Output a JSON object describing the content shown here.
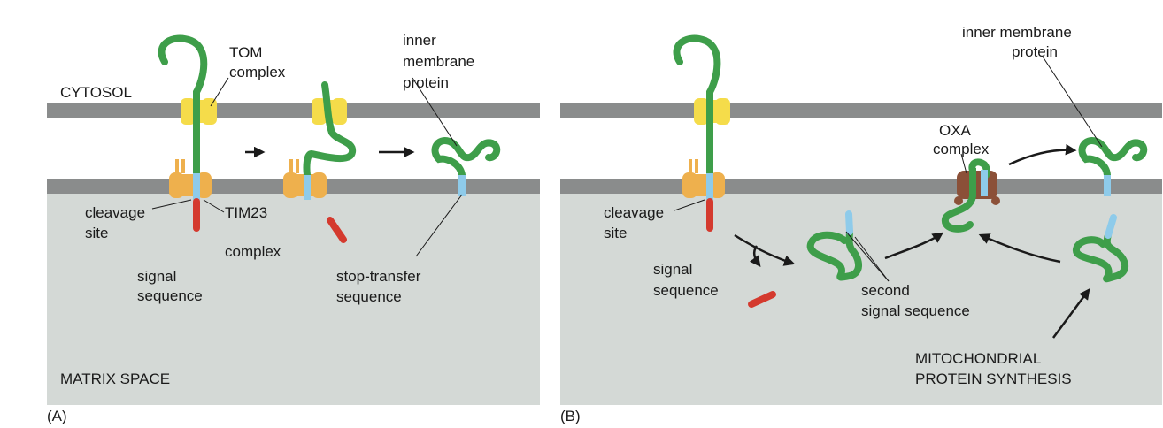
{
  "colors": {
    "membrane": "#8a8c8c",
    "matrix": "#d4d9d6",
    "protein": "#3e9e4a",
    "tom": "#f5dc4a",
    "tim23": "#eeb04d",
    "oxa": "#8b5038",
    "signal": "#d43a2e",
    "stop_transfer": "#8ecbea"
  },
  "panel_a": {
    "letter": "(A)",
    "compartments": {
      "cytosol": "CYTOSOL",
      "matrix": "MATRIX SPACE"
    },
    "labels": {
      "tom_1": "TOM",
      "tom_2": "complex",
      "imp_1": "inner",
      "imp_2": "membrane",
      "imp_3": "protein",
      "cleavage_1": "cleavage",
      "cleavage_2": "site",
      "tim_1": "TIM23",
      "tim_2": "complex",
      "signal_1": "signal",
      "signal_2": "sequence",
      "stop_1": "stop-transfer",
      "stop_2": "sequence"
    }
  },
  "panel_b": {
    "letter": "(B)",
    "labels": {
      "imp_1": "inner membrane",
      "imp_2": "protein",
      "oxa_1": "OXA",
      "oxa_2": "complex",
      "cleavage_1": "cleavage",
      "cleavage_2": "site",
      "signal_1": "signal",
      "signal_2": "sequence",
      "second_1": "second",
      "second_2": "signal sequence",
      "mito_1": "MITOCHONDRIAL",
      "mito_2": "PROTEIN SYNTHESIS"
    }
  }
}
